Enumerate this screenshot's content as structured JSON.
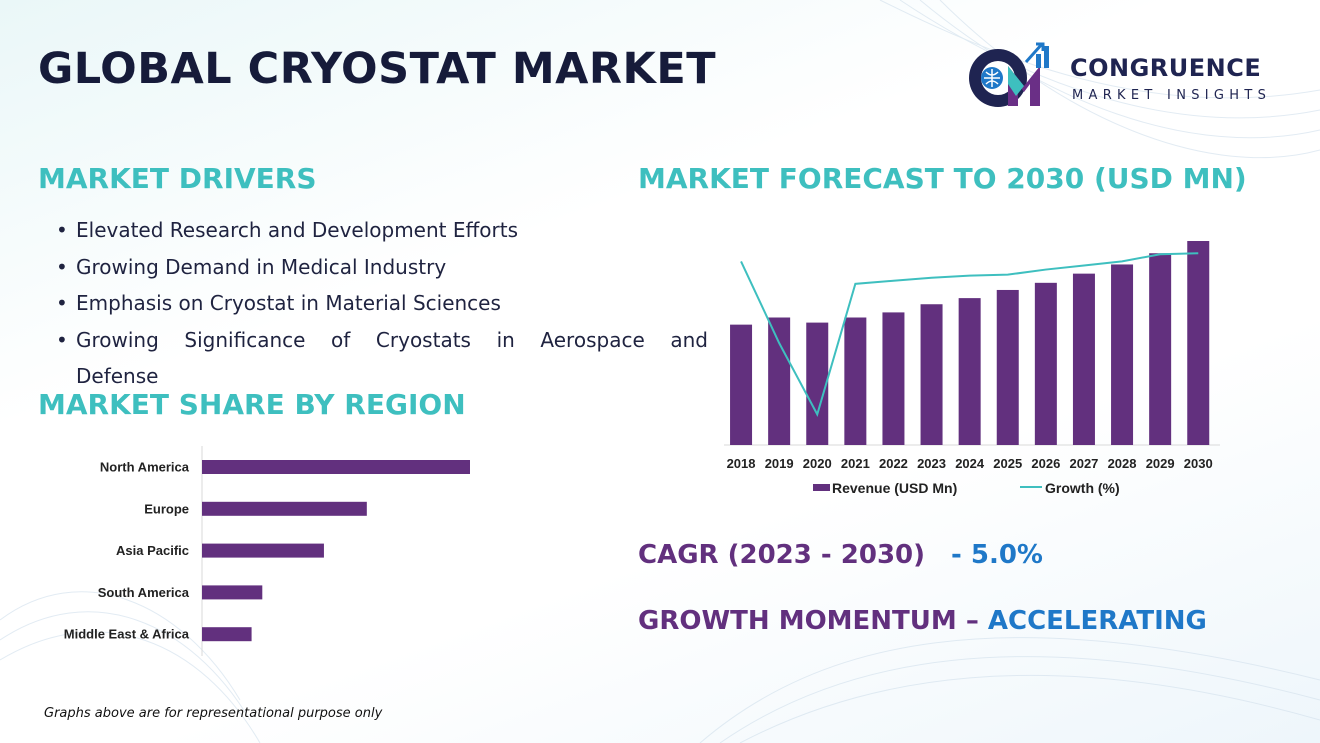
{
  "title": "GLOBAL CRYOSTAT MARKET",
  "logo": {
    "name": "CONGRUENCE",
    "tagline": "MARKET INSIGHTS",
    "mark_letters": "CM"
  },
  "drivers": {
    "heading": "MARKET DRIVERS",
    "items": [
      "Elevated Research and Development Efforts",
      "Growing Demand in Medical Industry",
      "Emphasis on Cryostat in Material Sciences",
      "Growing Significance of Cryostats in Aerospace and",
      "Defense"
    ]
  },
  "region": {
    "heading": "MARKET SHARE BY REGION"
  },
  "forecast": {
    "heading": "MARKET FORECAST TO 2030 (USD MN)"
  },
  "cagr": {
    "label": "CAGR (2023 - 2030)",
    "value": "- 5.0%"
  },
  "momentum": {
    "label": "GROWTH MOMENTUM – ",
    "value": "ACCELERATING"
  },
  "footnote": "Graphs above are for representational purpose only",
  "colors": {
    "bar": "#62307e",
    "line": "#3ebfbf",
    "heading_teal": "#3ebfbf",
    "accent_blue": "#1f78c8",
    "title_navy": "#161b3a"
  },
  "chart_data": [
    {
      "type": "bar",
      "orientation": "horizontal",
      "categories": [
        "North America",
        "Europe",
        "Asia Pacific",
        "South America",
        "Middle East & Africa"
      ],
      "values": [
        100,
        61.5,
        45.5,
        22.5,
        18.5
      ],
      "xlim": [
        0,
        100
      ],
      "grid": false,
      "legend": "none"
    },
    {
      "type": "bar",
      "categories": [
        "2018",
        "2019",
        "2020",
        "2021",
        "2022",
        "2023",
        "2024",
        "2025",
        "2026",
        "2027",
        "2028",
        "2029",
        "2030"
      ],
      "series": [
        {
          "name": "Revenue (USD Mn)",
          "type": "bar",
          "values": [
            59,
            62.5,
            60,
            62.5,
            65,
            69,
            72,
            76,
            79.5,
            84,
            88.5,
            94,
            100
          ]
        },
        {
          "name": "Growth (%)",
          "type": "line",
          "values": [
            90,
            50,
            15,
            79,
            80.5,
            82,
            83,
            83.5,
            86,
            88,
            90,
            93.5,
            94
          ]
        }
      ],
      "ylim": [
        0,
        100
      ],
      "grid": false,
      "legend": "bottom"
    }
  ]
}
